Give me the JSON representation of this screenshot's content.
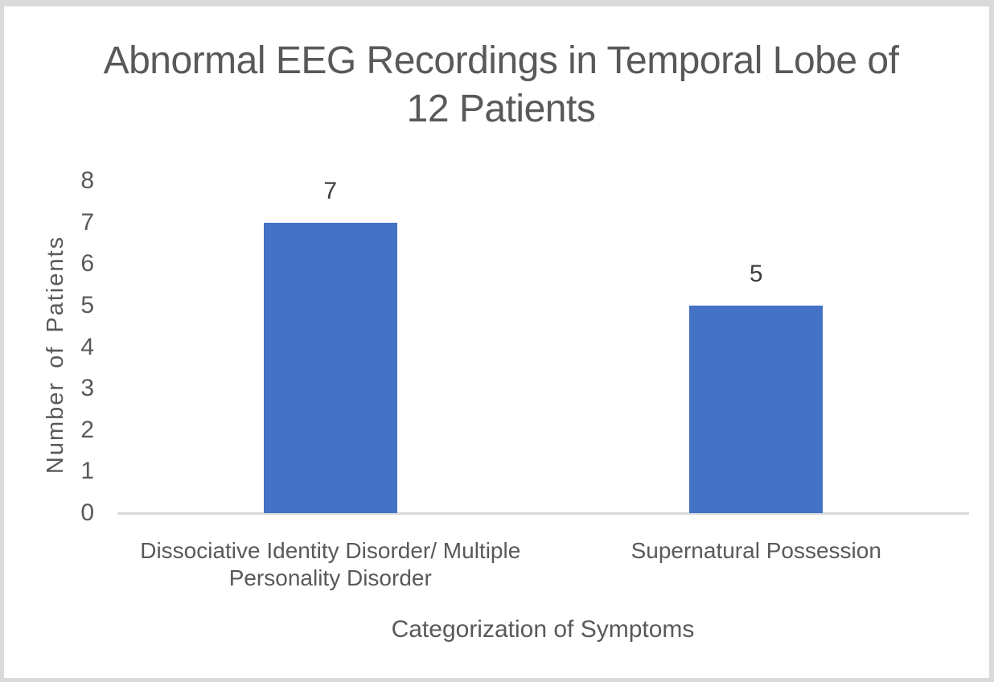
{
  "window": {
    "background": "#ffffff",
    "frame_border_color": "#dadada"
  },
  "chart_data": {
    "type": "bar",
    "title": "Abnormal EEG Recordings in Temporal Lobe of 12 Patients",
    "xlabel": "Categorization of Symptoms",
    "ylabel": "Number of Patients",
    "categories": [
      "Dissociative Identity Disorder/ Multiple Personality Disorder",
      "Supernatural Possession"
    ],
    "category_display_lines": [
      [
        "Dissociative Identity Disorder/ Multiple",
        "Personality Disorder"
      ],
      [
        "Supernatural Possession"
      ]
    ],
    "values": [
      7,
      5
    ],
    "data_labels": [
      "7",
      "5"
    ],
    "yticks": [
      0,
      1,
      2,
      3,
      4,
      5,
      6,
      7,
      8
    ],
    "ylim": [
      0,
      8
    ],
    "grid": false,
    "legend": false,
    "bar_color": "#4472c4",
    "axis_line_color": "#d9d9d9",
    "text_color": "#595959",
    "data_label_color": "#3f3f3f"
  }
}
